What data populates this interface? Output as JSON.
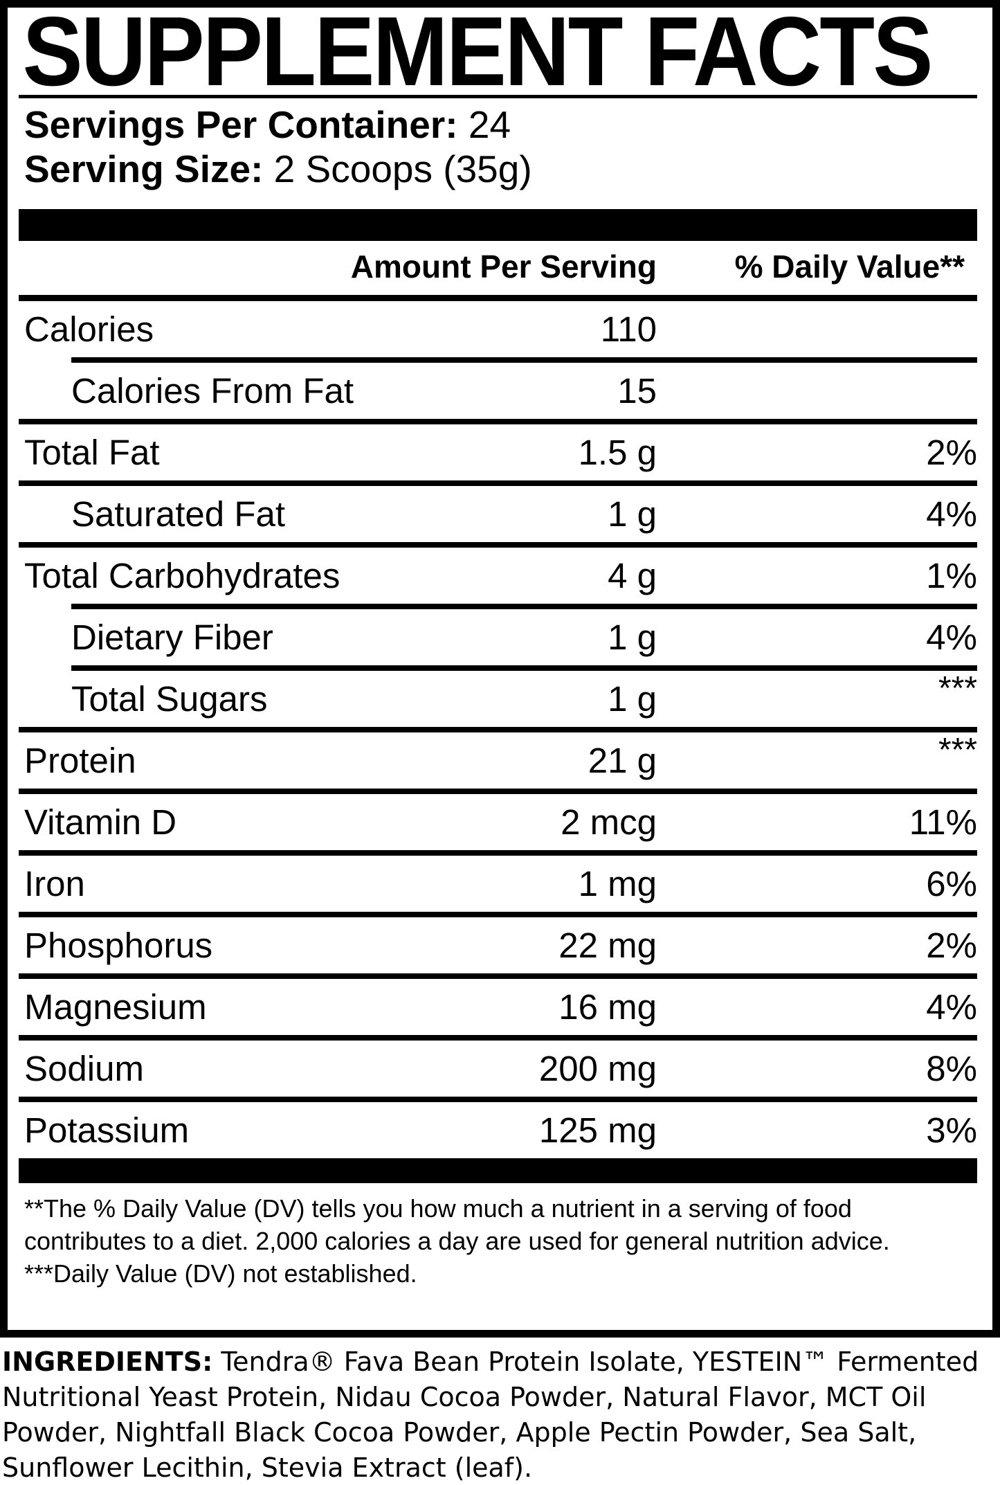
{
  "colors": {
    "ink": "#000000",
    "paper": "#ffffff"
  },
  "panel": {
    "title": "SUPPLEMENT FACTS",
    "servings_per_container": {
      "label": "Servings Per Container:",
      "value": "24"
    },
    "serving_size": {
      "label": "Serving Size:",
      "value": "2 Scoops (35g)"
    },
    "column_headers": {
      "amount": "Amount Per Serving",
      "daily_value": "% Daily Value**"
    },
    "rows": [
      {
        "name": "Calories",
        "amount": "110",
        "dv": "",
        "indent": false,
        "sep_above": "none"
      },
      {
        "name": "Calories From Fat",
        "amount": "15",
        "dv": "",
        "indent": true,
        "sep_above": "indent"
      },
      {
        "name": "Total Fat",
        "amount": "1.5 g",
        "dv": "2%",
        "indent": false,
        "sep_above": "full"
      },
      {
        "name": "Saturated Fat",
        "amount": "1 g",
        "dv": "4%",
        "indent": true,
        "sep_above": "full"
      },
      {
        "name": "Total Carbohydrates",
        "amount": "4 g",
        "dv": "1%",
        "indent": false,
        "sep_above": "full"
      },
      {
        "name": "Dietary Fiber",
        "amount": "1 g",
        "dv": "4%",
        "indent": true,
        "sep_above": "indent"
      },
      {
        "name": "Total Sugars",
        "amount": "1 g",
        "dv": "***",
        "indent": true,
        "sep_above": "indent"
      },
      {
        "name": "Protein",
        "amount": "21 g",
        "dv": "***",
        "indent": false,
        "sep_above": "full"
      },
      {
        "name": "Vitamin D",
        "amount": "2 mcg",
        "dv": "11%",
        "indent": false,
        "sep_above": "full"
      },
      {
        "name": "Iron",
        "amount": "1 mg",
        "dv": "6%",
        "indent": false,
        "sep_above": "full"
      },
      {
        "name": "Phosphorus",
        "amount": "22 mg",
        "dv": "2%",
        "indent": false,
        "sep_above": "full"
      },
      {
        "name": "Magnesium",
        "amount": "16 mg",
        "dv": "4%",
        "indent": false,
        "sep_above": "full"
      },
      {
        "name": "Sodium",
        "amount": "200 mg",
        "dv": "8%",
        "indent": false,
        "sep_above": "full"
      },
      {
        "name": "Potassium",
        "amount": "125 mg",
        "dv": "3%",
        "indent": false,
        "sep_above": "full"
      }
    ],
    "footnotes": [
      "**The % Daily Value (DV) tells you how much a nutrient in a serving of food contributes to a diet. 2,000 calories a day are used for general nutrition advice.",
      "***Daily Value (DV) not established."
    ]
  },
  "ingredients": {
    "label": "INGREDIENTS:",
    "text": "Tendra® Fava Bean Protein Isolate, YESTEIN™ Fermented Nutritional Yeast Protein, Nidau Cocoa Powder, Natural Flavor, MCT Oil Powder, Nightfall Black Cocoa Powder, Apple Pectin Powder, Sea Salt, Sunflower Lecithin, Stevia Extract (leaf)."
  }
}
